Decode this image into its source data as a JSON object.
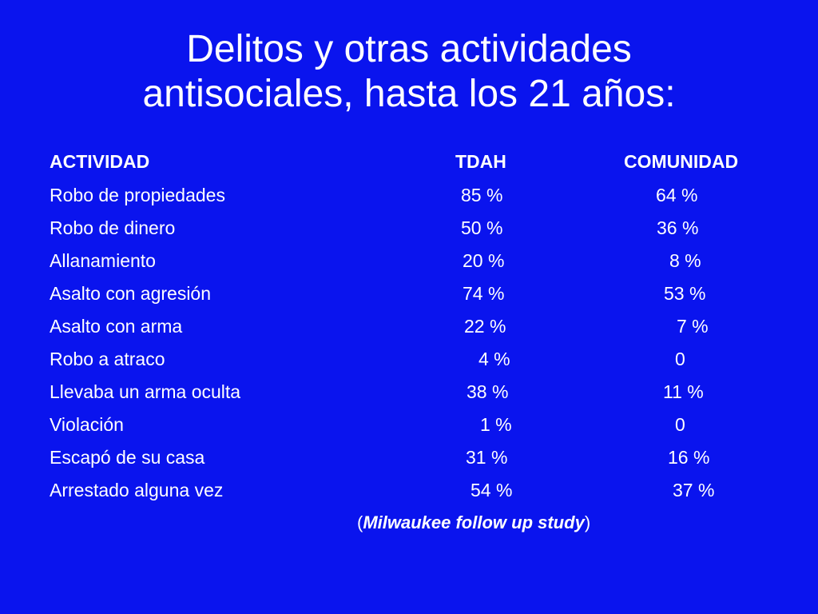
{
  "title": {
    "line1": "Delitos y otras actividades",
    "line2": "antisociales, hasta los 21 años:"
  },
  "table": {
    "headers": {
      "activity": "ACTIVIDAD",
      "tdah": "TDAH",
      "community": "COMUNIDAD"
    },
    "rows": [
      {
        "activity": "Robo de propiedades",
        "tdah": "85 %",
        "community": "64 %"
      },
      {
        "activity": "Robo de dinero",
        "tdah": "50 %",
        "community": "36 %"
      },
      {
        "activity": "Allanamiento",
        "tdah": "20 %",
        "community": "8 %"
      },
      {
        "activity": "Asalto con agresión",
        "tdah": "74 %",
        "community": "53 %"
      },
      {
        "activity": "Asalto con arma",
        "tdah": "22 %",
        "community": "7 %"
      },
      {
        "activity": "Robo a atraco",
        "tdah": "4 %",
        "community": "0"
      },
      {
        "activity": "Llevaba un arma oculta",
        "tdah": "38 %",
        "community": "11 %"
      },
      {
        "activity": "Violación",
        "tdah": "1 %",
        "community": "0"
      },
      {
        "activity": "Escapó de su casa",
        "tdah": "31 %",
        "community": "16 %"
      },
      {
        "activity": "Arrestado alguna vez",
        "tdah": "54 %",
        "community": "37 %"
      }
    ]
  },
  "source": {
    "open": "(",
    "study": "Milwaukee follow up study",
    "close": ")"
  },
  "colors": {
    "background": "#0a14ee",
    "text": "#ffffff"
  }
}
